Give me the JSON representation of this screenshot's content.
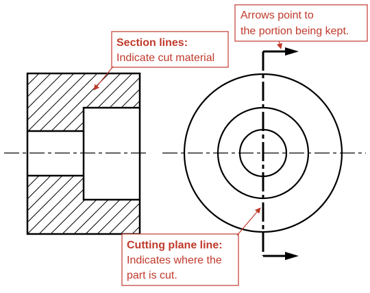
{
  "colors": {
    "drawing": "#000000",
    "annotation": "#c0392b",
    "background": "#ffffff"
  },
  "callouts": {
    "arrows": {
      "line1": "Arrows point to",
      "line2": "the portion being kept."
    },
    "section_lines": {
      "title": "Section lines:",
      "text": "Indicate cut material"
    },
    "cutting_plane": {
      "title": "Cutting plane line:",
      "line1": "Indicates where the",
      "line2": "part is cut."
    }
  }
}
